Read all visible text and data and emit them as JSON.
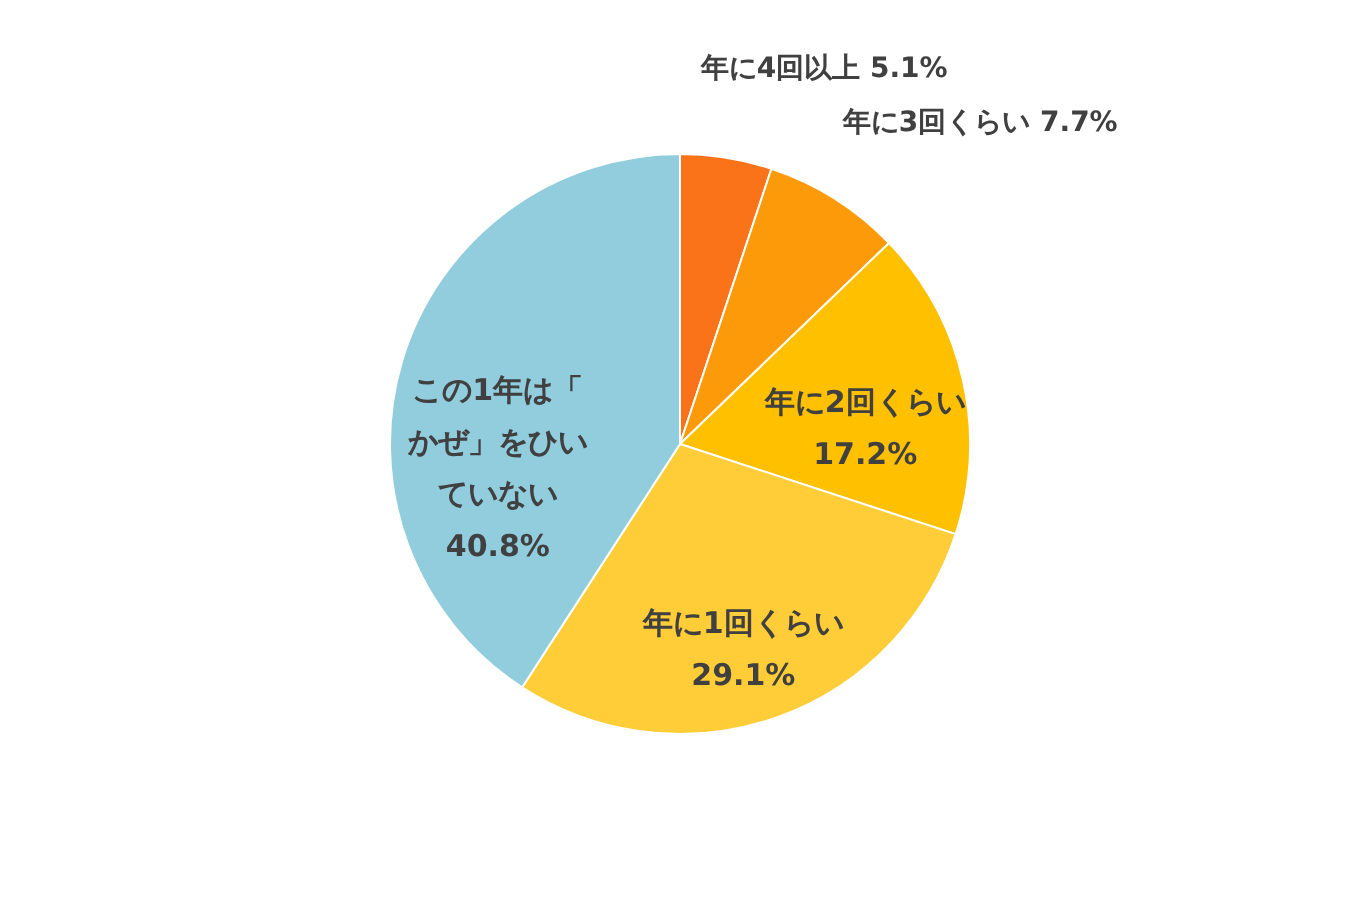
{
  "chart_data": {
    "type": "pie",
    "categories": [
      "年に4回以上",
      "年に3回くらい",
      "年に2回くらい",
      "年に1回くらい",
      "この1年は「かぜ」をひいていない"
    ],
    "values": [
      5.1,
      7.7,
      17.2,
      29.1,
      40.8
    ],
    "value_labels": [
      "5.1%",
      "7.7%",
      "17.2%",
      "29.1%",
      "40.8%"
    ],
    "colors": [
      "#fa7319",
      "#fd9a0a",
      "#ffc000",
      "#ffcd37",
      "#92cddd"
    ]
  }
}
